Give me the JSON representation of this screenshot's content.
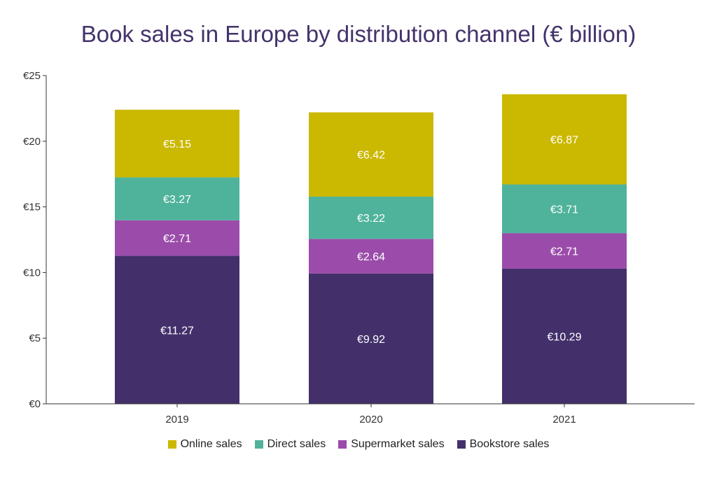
{
  "chart_data": {
    "type": "bar",
    "stacked": true,
    "title": "Book sales in Europe by distribution channel (€ billion)",
    "categories": [
      "2019",
      "2020",
      "2021"
    ],
    "ylim": [
      0,
      25
    ],
    "yticks": [
      0,
      5,
      10,
      15,
      20,
      25
    ],
    "ytick_labels": [
      "€0",
      "€5",
      "€10",
      "€15",
      "€20",
      "€25"
    ],
    "grid": false,
    "legend_position": "bottom",
    "series": [
      {
        "name": "Bookstore sales",
        "color": "#43306b",
        "values": [
          11.27,
          9.92,
          10.29
        ],
        "labels": [
          "€11.27",
          "€9.92",
          "€10.29"
        ]
      },
      {
        "name": "Supermarket sales",
        "color": "#9b4caa",
        "values": [
          2.71,
          2.64,
          2.71
        ],
        "labels": [
          "€2.71",
          "€2.64",
          "€2.71"
        ]
      },
      {
        "name": "Direct sales",
        "color": "#4fb39b",
        "values": [
          3.27,
          3.22,
          3.71
        ],
        "labels": [
          "€3.27",
          "€3.22",
          "€3.71"
        ]
      },
      {
        "name": "Online sales",
        "color": "#cbb800",
        "values": [
          5.15,
          6.42,
          6.87
        ],
        "labels": [
          "€5.15",
          "€6.42",
          "€6.87"
        ]
      }
    ],
    "legend_order": [
      "Online sales",
      "Direct sales",
      "Supermarket sales",
      "Bookstore sales"
    ]
  }
}
